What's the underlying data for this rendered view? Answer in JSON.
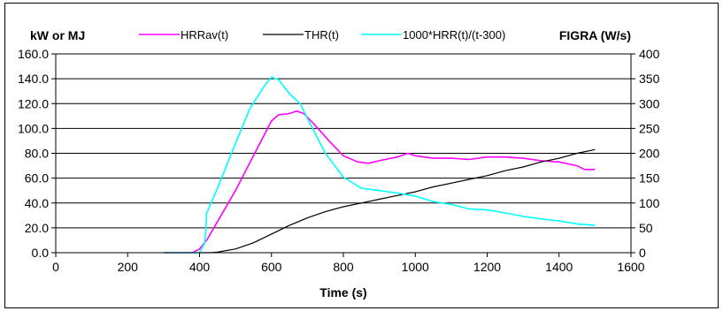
{
  "chart_data": {
    "type": "line",
    "xlabel": "Time (s)",
    "ylabel": "kW or MJ",
    "y2label": "FIGRA (W/s)",
    "xlim": [
      0,
      1600
    ],
    "ylim": [
      0,
      160
    ],
    "y2lim": [
      0,
      400
    ],
    "x_ticks": [
      0,
      200,
      400,
      600,
      800,
      1000,
      1200,
      1400,
      1600
    ],
    "y_ticks": [
      "0.0",
      "20.0",
      "40.0",
      "60.0",
      "80.0",
      "100.0",
      "120.0",
      "140.0",
      "160.0"
    ],
    "y2_ticks": [
      0,
      50,
      100,
      150,
      200,
      250,
      300,
      350,
      400
    ],
    "grid": "horizontal",
    "legend_position": "top",
    "series": [
      {
        "name": "HRRav(t)",
        "axis": "left",
        "color": "#ff00ff",
        "x": [
          300,
          380,
          400,
          420,
          450,
          500,
          550,
          600,
          620,
          650,
          670,
          690,
          720,
          760,
          800,
          840,
          870,
          900,
          950,
          980,
          1000,
          1050,
          1100,
          1150,
          1200,
          1250,
          1300,
          1350,
          1400,
          1450,
          1470,
          1500
        ],
        "y": [
          0,
          0,
          3,
          10,
          25,
          50,
          78,
          106,
          111,
          112,
          114,
          112,
          103,
          90,
          78,
          73,
          72,
          74,
          77,
          80,
          78,
          76,
          76,
          75,
          77,
          77,
          76,
          74,
          73,
          70,
          67,
          67
        ]
      },
      {
        "name": "THR(t)",
        "axis": "left",
        "color": "#000000",
        "x": [
          400,
          430,
          450,
          500,
          550,
          600,
          650,
          700,
          750,
          800,
          850,
          900,
          950,
          1000,
          1050,
          1100,
          1150,
          1200,
          1250,
          1300,
          1350,
          1400,
          1450,
          1500
        ],
        "y": [
          0,
          0,
          0.5,
          3,
          8,
          15,
          22,
          28,
          33,
          37,
          40,
          43,
          46,
          49,
          53,
          56,
          59,
          62,
          66,
          69,
          73,
          76,
          80,
          83
        ]
      },
      {
        "name": "1000*HRR(t)/(t-300)",
        "axis": "right",
        "color": "#00ffff",
        "x": [
          300,
          400,
          415,
          420,
          450,
          500,
          540,
          580,
          600,
          620,
          650,
          680,
          700,
          750,
          800,
          850,
          900,
          950,
          1000,
          1050,
          1100,
          1150,
          1200,
          1250,
          1300,
          1350,
          1400,
          1450,
          1500
        ],
        "y": [
          0,
          0,
          20,
          80,
          130,
          220,
          290,
          335,
          353,
          348,
          320,
          300,
          270,
          200,
          152,
          130,
          125,
          120,
          114,
          103,
          97,
          88,
          86,
          80,
          73,
          68,
          64,
          58,
          55
        ]
      }
    ]
  }
}
